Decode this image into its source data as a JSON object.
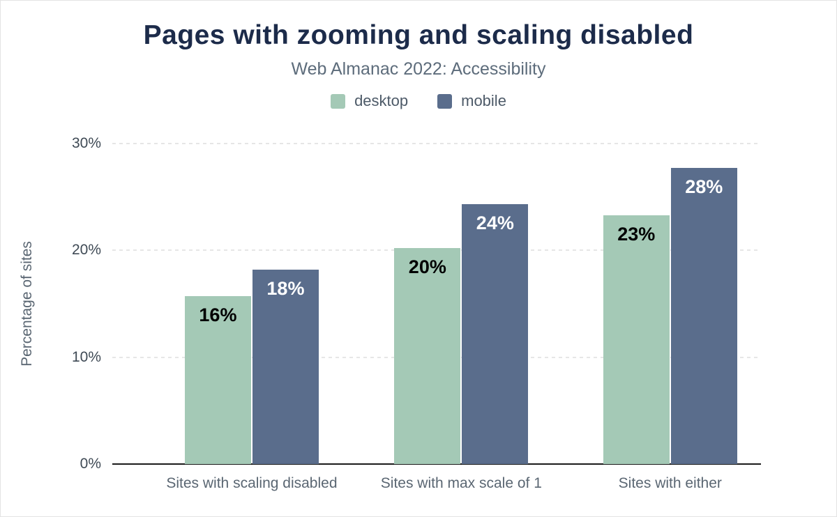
{
  "header": {
    "title": "Pages with zooming and scaling disabled",
    "subtitle": "Web Almanac 2022: Accessibility"
  },
  "chart_data": {
    "type": "bar",
    "title": "Pages with zooming and scaling disabled",
    "subtitle": "Web Almanac 2022: Accessibility",
    "categories": [
      "Sites with scaling disabled",
      "Sites with max scale of 1",
      "Sites with either"
    ],
    "series": [
      {
        "name": "desktop",
        "color": "#a4c9b6",
        "values": [
          15.7,
          20.2,
          23.3
        ],
        "labels": [
          "16%",
          "20%",
          "23%"
        ],
        "label_color": "#000000"
      },
      {
        "name": "mobile",
        "color": "#5a6d8c",
        "values": [
          18.2,
          24.3,
          27.7
        ],
        "labels": [
          "18%",
          "24%",
          "28%"
        ],
        "label_color": "#ffffff"
      }
    ],
    "ylabel": "Percentage of sites",
    "xlabel": "",
    "yticks": [
      "0%",
      "10%",
      "20%",
      "30%"
    ],
    "ylim": [
      0,
      30
    ],
    "grid": "dashed horizontal gridlines at 10%, 20%, 30%; solid axis at 0%",
    "legend_position": "top center"
  }
}
